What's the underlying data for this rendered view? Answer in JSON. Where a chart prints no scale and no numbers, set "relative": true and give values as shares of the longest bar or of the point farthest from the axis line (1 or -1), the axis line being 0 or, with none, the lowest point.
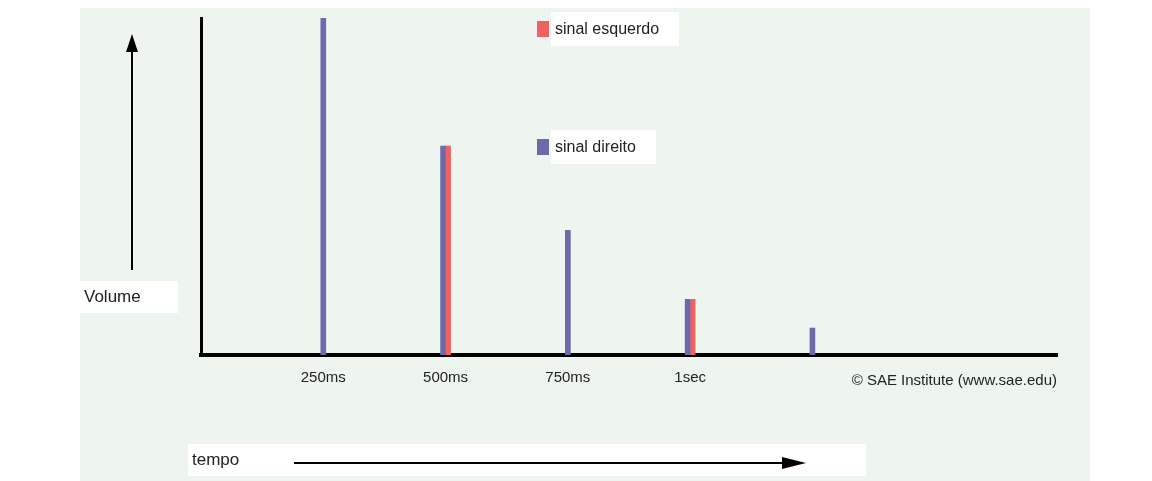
{
  "chart_data": {
    "type": "bar",
    "relative": true,
    "ylabel": "Volume",
    "xlabel": "tempo",
    "categories": [
      null,
      "250ms",
      "500ms",
      "750ms",
      "1sec",
      null,
      null,
      null
    ],
    "series": [
      {
        "name": "sinal esquerdo",
        "color": "#f06262",
        "values": [
          null,
          null,
          0.62,
          null,
          0.165,
          null,
          null,
          null
        ]
      },
      {
        "name": "sinal direito",
        "color": "#6b6bab",
        "values": [
          null,
          1,
          0.62,
          0.37,
          0.165,
          0.08,
          null,
          null
        ]
      }
    ],
    "legend": "top",
    "grid": false,
    "annotations": [
      "© SAE Institute (www.sae.edu)"
    ]
  }
}
